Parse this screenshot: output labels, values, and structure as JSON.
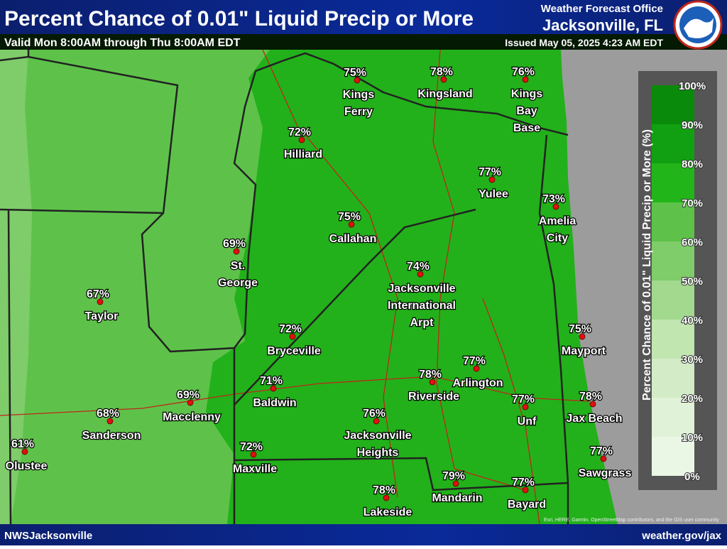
{
  "header": {
    "title": "Percent Chance of 0.01\" Liquid Precip or More",
    "subtitle": "Valid Mon 8:00AM through Thu 8:00AM EDT",
    "office_line": "Weather Forecast Office",
    "office": "Jacksonville, FL",
    "issued": "Issued May 05, 2025 4:23 AM EDT"
  },
  "legend": {
    "title": "Percent Chance of 0.01\" Liquid Precip or More (%)",
    "ticks": [
      "0%",
      "10%",
      "20%",
      "30%",
      "40%",
      "50%",
      "60%",
      "70%",
      "80%",
      "90%",
      "100%"
    ]
  },
  "locations": [
    {
      "pct": "75%",
      "name": [
        "Kings",
        "Ferry"
      ]
    },
    {
      "pct": "78%",
      "name": [
        "Kingsland"
      ]
    },
    {
      "pct": "76%",
      "name": [
        "Kings",
        "Bay",
        "Base"
      ]
    },
    {
      "pct": "72%",
      "name": [
        "Hilliard"
      ]
    },
    {
      "pct": "77%",
      "name": [
        "Yulee"
      ]
    },
    {
      "pct": "73%",
      "name": [
        "Amelia",
        "City"
      ]
    },
    {
      "pct": "75%",
      "name": [
        "Callahan"
      ]
    },
    {
      "pct": "69%",
      "name": [
        "St.",
        "George"
      ]
    },
    {
      "pct": "67%",
      "name": [
        "Taylor"
      ]
    },
    {
      "pct": "74%",
      "name": [
        "Jacksonville",
        "International",
        "Arpt"
      ]
    },
    {
      "pct": "72%",
      "name": [
        "Bryceville"
      ]
    },
    {
      "pct": "75%",
      "name": [
        "Mayport"
      ]
    },
    {
      "pct": "77%",
      "name": [
        "Arlington"
      ]
    },
    {
      "pct": "78%",
      "name": [
        "Riverside"
      ]
    },
    {
      "pct": "71%",
      "name": [
        "Baldwin"
      ]
    },
    {
      "pct": "69%",
      "name": [
        "Macclenny"
      ]
    },
    {
      "pct": "77%",
      "name": [
        "Unf"
      ]
    },
    {
      "pct": "78%",
      "name": [
        "Jax Beach"
      ]
    },
    {
      "pct": "68%",
      "name": [
        "Sanderson"
      ]
    },
    {
      "pct": "76%",
      "name": [
        "Jacksonville",
        "Heights"
      ]
    },
    {
      "pct": "61%",
      "name": [
        "Olustee"
      ]
    },
    {
      "pct": "72%",
      "name": [
        "Maxville"
      ]
    },
    {
      "pct": "77%",
      "name": [
        "Sawgrass"
      ]
    },
    {
      "pct": "78%",
      "name": [
        "Lakeside"
      ]
    },
    {
      "pct": "79%",
      "name": [
        "Mandarin"
      ]
    },
    {
      "pct": "77%",
      "name": [
        "Bayard"
      ]
    }
  ],
  "footer": {
    "left": "NWSJacksonville",
    "right": "weather.gov/jax",
    "attribution": "Esri, HERE, Garmin, OpenStreetMap contributors, and the GIS user community"
  }
}
